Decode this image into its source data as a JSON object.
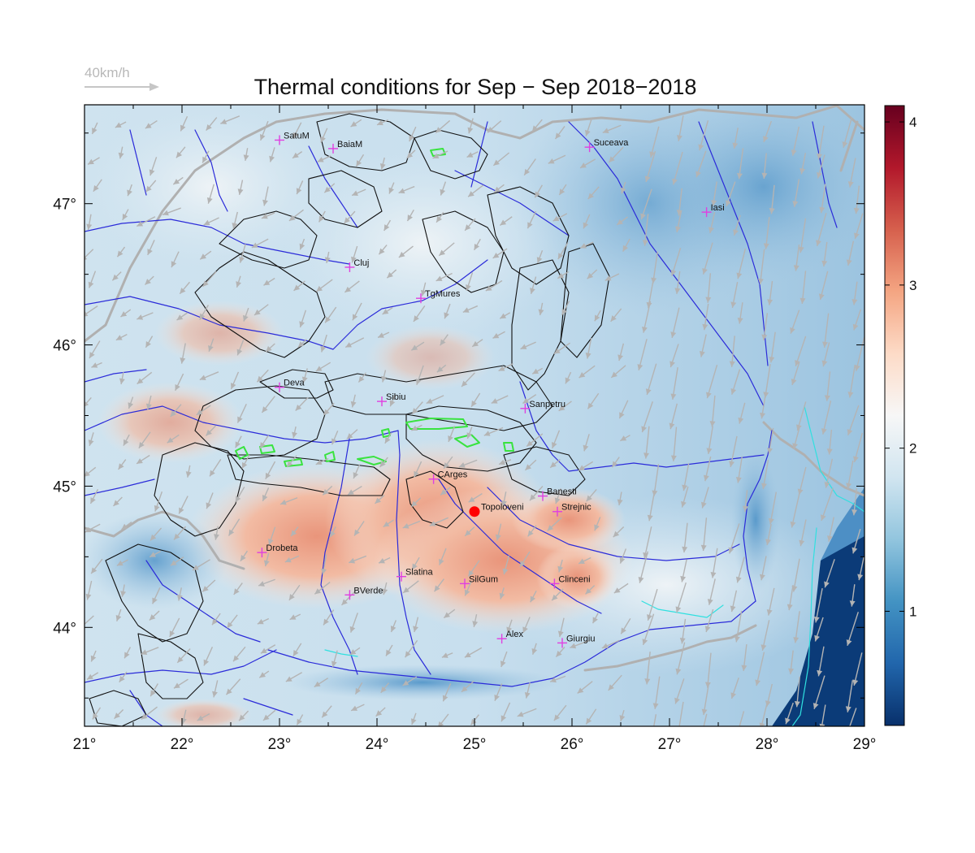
{
  "title": "Thermal conditions for Sep − Sep  2018−2018",
  "legend": {
    "speed_label": "40km/h"
  },
  "map": {
    "lon_range": [
      21,
      29
    ],
    "lat_range": [
      43.3,
      47.7
    ],
    "lon_ticks": [
      "21°",
      "22°",
      "23°",
      "24°",
      "25°",
      "26°",
      "27°",
      "28°",
      "29°"
    ],
    "lat_ticks": [
      "44°",
      "45°",
      "46°",
      "47°"
    ],
    "highlight_location": {
      "name": "Topoloveni",
      "lon": 25.0,
      "lat": 44.82
    },
    "stations": [
      {
        "name": "SatuM",
        "lon": 23.0,
        "lat": 47.45
      },
      {
        "name": "BaiaM",
        "lon": 23.55,
        "lat": 47.39
      },
      {
        "name": "Suceava",
        "lon": 26.18,
        "lat": 47.4
      },
      {
        "name": "Iasi",
        "lon": 27.38,
        "lat": 46.94
      },
      {
        "name": "Cluj",
        "lon": 23.72,
        "lat": 46.55
      },
      {
        "name": "TgMures",
        "lon": 24.45,
        "lat": 46.33
      },
      {
        "name": "Deva",
        "lon": 23.0,
        "lat": 45.7
      },
      {
        "name": "Sibiu",
        "lon": 24.05,
        "lat": 45.6
      },
      {
        "name": "Sanpetru",
        "lon": 25.52,
        "lat": 45.55
      },
      {
        "name": "CArges",
        "lon": 24.58,
        "lat": 45.05
      },
      {
        "name": "Banesti",
        "lon": 25.7,
        "lat": 44.93
      },
      {
        "name": "Strejnic",
        "lon": 25.85,
        "lat": 44.82
      },
      {
        "name": "Drobeta",
        "lon": 22.82,
        "lat": 44.53
      },
      {
        "name": "Slatina",
        "lon": 24.25,
        "lat": 44.36
      },
      {
        "name": "SilGum",
        "lon": 24.9,
        "lat": 44.31
      },
      {
        "name": "Clinceni",
        "lon": 25.82,
        "lat": 44.31
      },
      {
        "name": "BVerde",
        "lon": 23.72,
        "lat": 44.23
      },
      {
        "name": "Alex",
        "lon": 25.28,
        "lat": 43.92
      },
      {
        "name": "Giurgiu",
        "lon": 25.9,
        "lat": 43.89
      }
    ]
  },
  "colorbar": {
    "range": [
      0.3,
      4.1
    ],
    "ticks": [
      "1",
      "2",
      "3",
      "4"
    ],
    "colors": [
      "#08306b",
      "#2166ac",
      "#4393c3",
      "#92c5de",
      "#d1e5f0",
      "#f7f7f7",
      "#fddbc7",
      "#f4a582",
      "#d6604d",
      "#b2182b",
      "#67001f"
    ]
  },
  "colors": {
    "station_marker": "#e040e0",
    "highlight_marker": "#ff0000",
    "river": "#2b2bd9",
    "border": "#b0b0b0",
    "contour": "#111111",
    "coast": "#30e0e0",
    "high_contour": "#39e33f",
    "wind_arrow": "#b4b4b4"
  }
}
